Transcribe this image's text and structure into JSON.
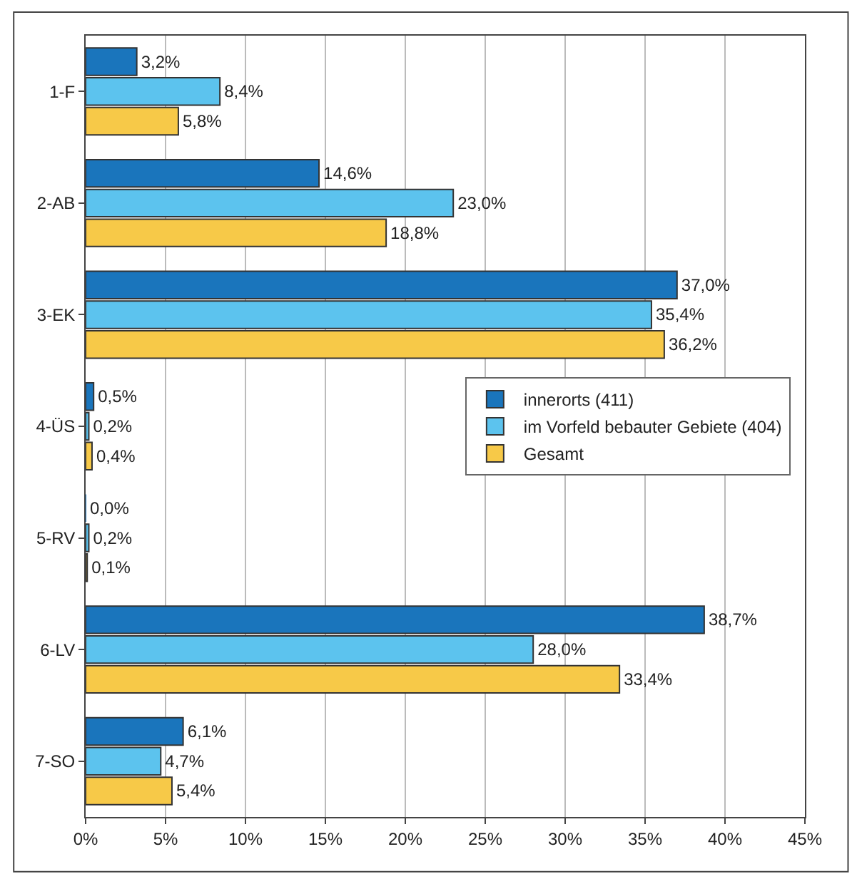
{
  "chart_data": {
    "type": "bar",
    "orientation": "horizontal",
    "categories": [
      "1-F",
      "2-AB",
      "3-EK",
      "4-ÜS",
      "5-RV",
      "6-LV",
      "7-SO"
    ],
    "series": [
      {
        "name": "innerorts (411)",
        "color": "#1a75bc",
        "values": [
          3.2,
          14.6,
          37.0,
          0.5,
          0.0,
          38.7,
          6.1
        ],
        "value_labels": [
          "3,2%",
          "14,6%",
          "37,0%",
          "0,5%",
          "0,0%",
          "38,7%",
          "6,1%"
        ]
      },
      {
        "name": "im Vorfeld bebauter Gebiete (404)",
        "color": "#5cc3ee",
        "values": [
          8.4,
          23.0,
          35.4,
          0.2,
          0.2,
          28.0,
          4.7
        ],
        "value_labels": [
          "8,4%",
          "23,0%",
          "35,4%",
          "0,2%",
          "0,2%",
          "28,0%",
          "4,7%"
        ]
      },
      {
        "name": "Gesamt",
        "color": "#f7c948",
        "values": [
          5.8,
          18.8,
          36.2,
          0.4,
          0.1,
          33.4,
          5.4
        ],
        "value_labels": [
          "5,8%",
          "18,8%",
          "36,2%",
          "0,4%",
          "0,1%",
          "33,4%",
          "5,4%"
        ]
      }
    ],
    "xlim": [
      0,
      45
    ],
    "xticks": [
      {
        "value": 0,
        "label": "0%"
      },
      {
        "value": 5,
        "label": "5%"
      },
      {
        "value": 10,
        "label": "10%"
      },
      {
        "value": 15,
        "label": "15%"
      },
      {
        "value": 20,
        "label": "20%"
      },
      {
        "value": 25,
        "label": "25%"
      },
      {
        "value": 30,
        "label": "30%"
      },
      {
        "value": 35,
        "label": "35%"
      },
      {
        "value": 40,
        "label": "40%"
      },
      {
        "value": 45,
        "label": "45%"
      }
    ],
    "grid": "x",
    "legend": "right"
  }
}
